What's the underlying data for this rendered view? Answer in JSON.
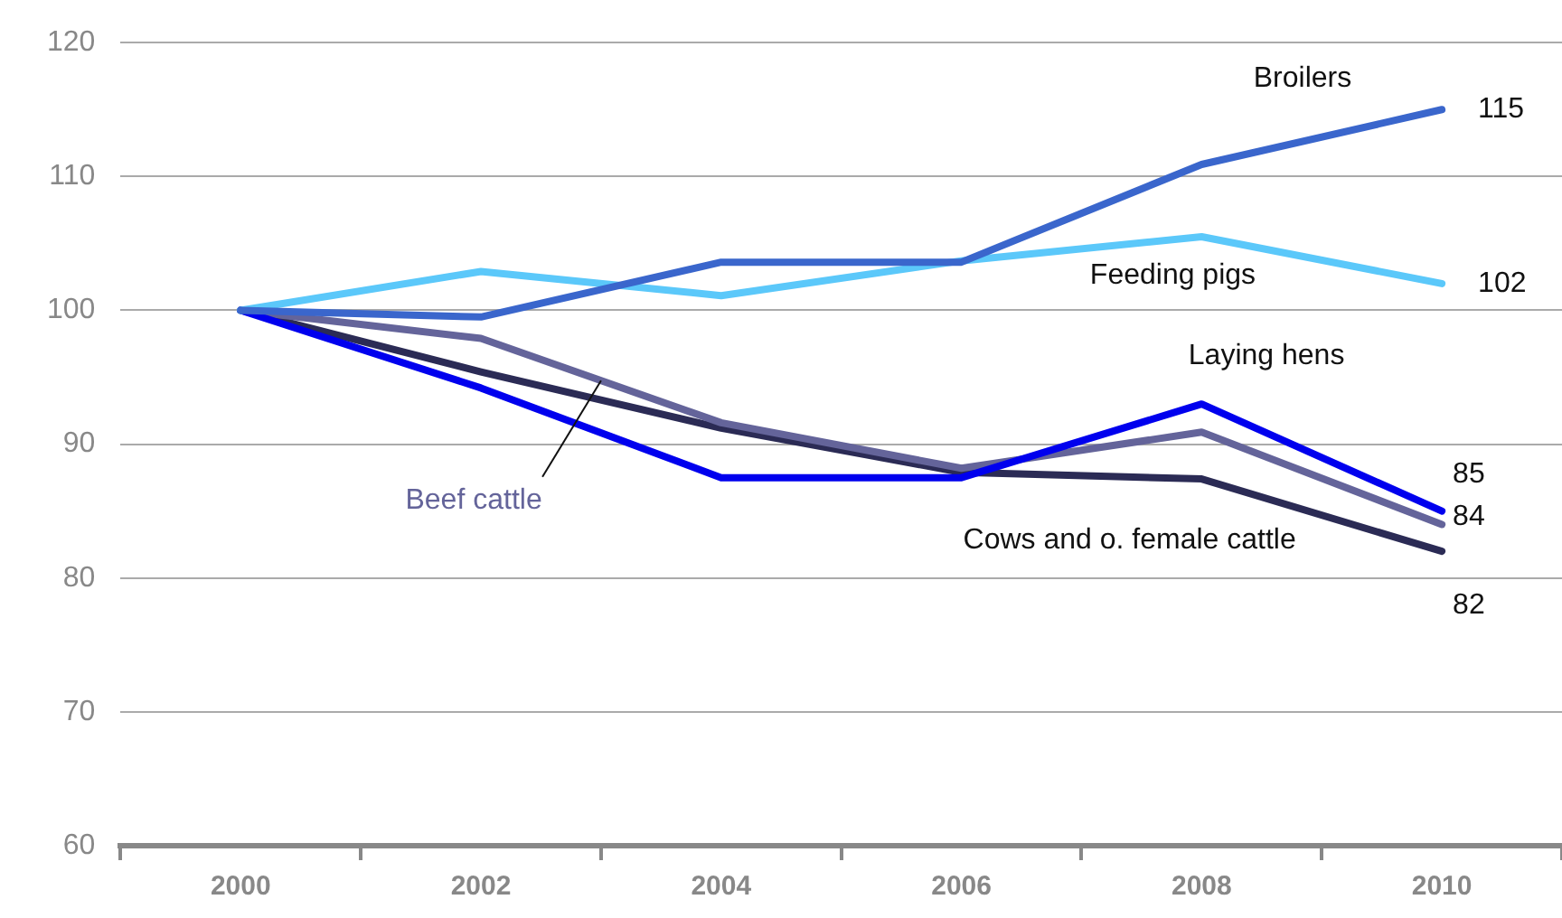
{
  "chart_data": {
    "type": "line",
    "categories": [
      "2000",
      "2002",
      "2004",
      "2006",
      "2008",
      "2010"
    ],
    "series": [
      {
        "name": "Broilers",
        "color": "#3a66cc",
        "values": [
          100,
          99.5,
          103.6,
          103.6,
          110.9,
          115
        ],
        "value_labels": [
          null,
          null,
          null,
          null,
          null,
          "115"
        ]
      },
      {
        "name": "Feeding pigs",
        "color": "#5bc8fa",
        "values": [
          100,
          102.9,
          101.1,
          103.7,
          105.5,
          102
        ],
        "value_labels": [
          null,
          null,
          null,
          null,
          null,
          "102"
        ]
      },
      {
        "name": "Laying hens",
        "color": "#0000ee",
        "values": [
          100,
          94.2,
          87.5,
          87.5,
          93.0,
          85
        ],
        "value_labels": [
          null,
          null,
          null,
          null,
          null,
          "85"
        ]
      },
      {
        "name": "Beef cattle",
        "color": "#64649a",
        "values": [
          100,
          97.9,
          91.6,
          88.2,
          90.9,
          84
        ],
        "value_labels": [
          null,
          null,
          null,
          null,
          null,
          "84"
        ]
      },
      {
        "name": "Cows and o. female cattle",
        "color": "#2b2b55",
        "values": [
          100,
          95.4,
          91.2,
          87.9,
          87.4,
          82
        ],
        "value_labels": [
          null,
          null,
          null,
          null,
          null,
          "82"
        ]
      }
    ],
    "ylim": [
      60,
      120
    ],
    "yticks": [
      60,
      70,
      80,
      90,
      100,
      110,
      120
    ],
    "grid": "y",
    "legend": false,
    "marker": "none",
    "line_style": "solid"
  }
}
